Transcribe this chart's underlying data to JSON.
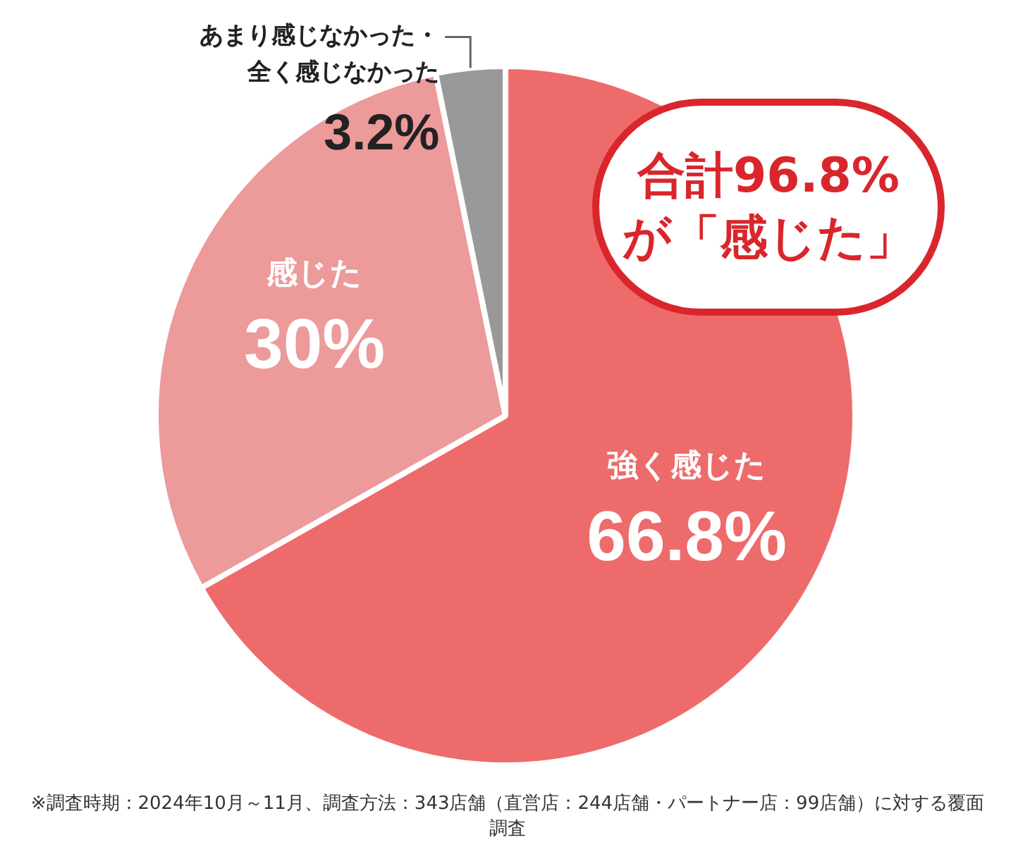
{
  "chart_data": {
    "type": "pie",
    "categories": [
      "強く感じた",
      "感じた",
      "あまり感じなかった・全く感じなかった"
    ],
    "values": [
      66.8,
      30,
      3.2
    ],
    "colors": [
      "#ee6b6b",
      "#ec9a9a",
      "#999999"
    ],
    "value_labels": [
      "66.8%",
      "30%",
      "3.2%"
    ],
    "annotations": [
      "合計96.8%が「感じた」",
      "※調査時期：2024年10月～11月、調査方法：343店舗（直営店：244店舗・パートナー店：99店舗）に対する覆面調査"
    ]
  }
}
